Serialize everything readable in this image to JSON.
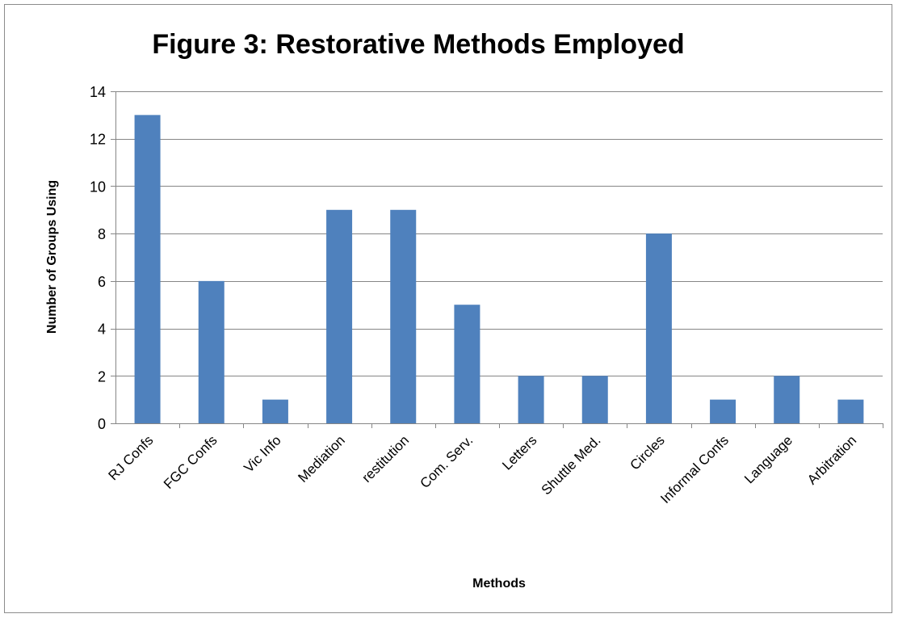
{
  "chart_data": {
    "type": "bar",
    "title": "Figure 3: Restorative Methods Employed",
    "xlabel": "Methods",
    "ylabel": "Number of Groups Using",
    "categories": [
      "RJ Confs",
      "FGC Confs",
      "Vic Info",
      "Mediation",
      "restitution",
      "Com. Serv.",
      "Letters",
      "Shuttle Med.",
      "Circles",
      "Informal Confs",
      "Language",
      "Arbitration"
    ],
    "values": [
      13,
      6,
      1,
      9,
      9,
      5,
      2,
      2,
      8,
      1,
      2,
      1
    ],
    "ylim": [
      0,
      14
    ],
    "yticks": [
      "0",
      "2",
      "4",
      "6",
      "8",
      "10",
      "12",
      "14"
    ],
    "grid": true,
    "legend": "none",
    "bar_color": "#4f81bd",
    "grid_color": "#868686"
  }
}
